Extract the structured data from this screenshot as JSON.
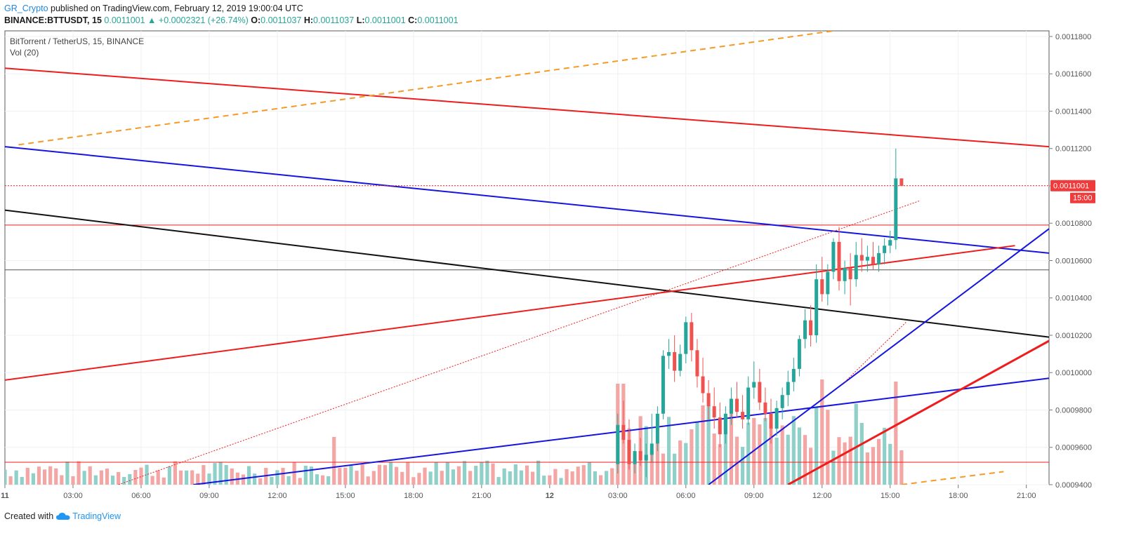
{
  "header": {
    "author": "GR_Crypto",
    "published_text": " published on TradingView.com, February 12, 2019 19:00:04 UTC"
  },
  "ohlc": {
    "symbol": "BINANCE:BTTUSDT, 15",
    "last": "0.0011001",
    "arrow": "▲",
    "change": "+0.0002321 (+26.74%)",
    "o_label": "O:",
    "o": "0.0011037",
    "h_label": "H:",
    "h": "0.0011037",
    "l_label": "L:",
    "l": "0.0011001",
    "c_label": "C:",
    "c": "0.0011001"
  },
  "legend": {
    "title": "BitTorrent / TetherUS, 15, BINANCE",
    "volume": "Vol (20)"
  },
  "footer": {
    "created_with": "Created with",
    "brand": "TradingView"
  },
  "colors": {
    "up": "#26a69a",
    "down": "#ef5350",
    "up_vol": "#8fd0c8",
    "down_vol": "#f4a6a4",
    "red_line": "#ee1c1c",
    "blue_line": "#1515e0",
    "black_line": "#111111",
    "orange_dash": "#f59a23",
    "grid": "#eef0f3"
  },
  "chart_data": {
    "type": "candlestick",
    "title": "BitTorrent / TetherUS, 15, BINANCE",
    "y_range": [
      0.00094,
      0.001183
    ],
    "y_ticks": [
      "0.0011800",
      "0.0011600",
      "0.0011400",
      "0.0011200",
      "0.0011000",
      "0.0010800",
      "0.0010600",
      "0.0010400",
      "0.0010200",
      "0.0010000",
      "0.0009800",
      "0.0009600",
      "0.0009400"
    ],
    "x_ticks": [
      "11",
      "03:00",
      "06:00",
      "09:00",
      "12:00",
      "15:00",
      "18:00",
      "21:00",
      "12",
      "03:00",
      "06:00",
      "09:00",
      "12:00",
      "15:00",
      "18:00",
      "21:00"
    ],
    "x_range_hours": [
      0,
      46
    ],
    "price_label": "0.0011001",
    "price_time": "15:00",
    "horizontal_levels": [
      {
        "name": "resistance-red",
        "price": 0.001079
      },
      {
        "name": "support-black",
        "price": 0.001055
      },
      {
        "name": "volume-ma",
        "price": 0.000952
      }
    ],
    "trendlines": [
      {
        "name": "red-upper",
        "p1": [
          0,
          0.001163
        ],
        "p2": [
          46,
          0.001121
        ]
      },
      {
        "name": "blue-upper",
        "p1": [
          0,
          0.001121
        ],
        "p2": [
          46,
          0.001064
        ]
      },
      {
        "name": "black-descending",
        "p1": [
          0,
          0.001087
        ],
        "p2": [
          46,
          0.001019
        ]
      },
      {
        "name": "red-rising",
        "p1": [
          0,
          0.000996
        ],
        "p2": [
          44.5,
          0.001068
        ]
      },
      {
        "name": "blue-rising",
        "p1": [
          8.3,
          0.00094
        ],
        "p2": [
          46,
          0.000997
        ]
      },
      {
        "name": "blue-rising-2",
        "p1": [
          31.0,
          0.00094
        ],
        "p2": [
          46,
          0.001077
        ]
      },
      {
        "name": "red-bold-rising",
        "p1": [
          34.5,
          0.00094
        ],
        "p2": [
          46,
          0.001017
        ]
      }
    ],
    "dashed_lines": [
      {
        "name": "orange-upper",
        "p1": [
          0.6,
          0.001122
        ],
        "p2": [
          36.5,
          0.001183
        ]
      },
      {
        "name": "orange-lower",
        "p1": [
          39.5,
          0.00094
        ],
        "p2": [
          44.0,
          0.000947
        ]
      }
    ],
    "dotted_lines": [
      {
        "name": "red-dotted-long",
        "p1": [
          5.0,
          0.00094
        ],
        "p2": [
          40.3,
          0.001092
        ]
      },
      {
        "name": "red-dotted-short",
        "p1": [
          37.0,
          0.000995
        ],
        "p2": [
          39.7,
          0.001027
        ]
      }
    ],
    "candles": [
      [
        27.0,
        0.000951,
        0.000978,
        0.000946,
        0.000972
      ],
      [
        27.25,
        0.000972,
        0.000985,
        0.000962,
        0.000964
      ],
      [
        27.5,
        0.000964,
        0.000975,
        0.000948,
        0.000951
      ],
      [
        27.75,
        0.000951,
        0.000962,
        0.000946,
        0.000958
      ],
      [
        28.0,
        0.000958,
        0.000965,
        0.00095,
        0.000953
      ],
      [
        28.25,
        0.000953,
        0.000962,
        0.000944,
        0.000956
      ],
      [
        28.5,
        0.000956,
        0.000978,
        0.000952,
        0.000962
      ],
      [
        28.75,
        0.000962,
        0.000982,
        0.000958,
        0.000978
      ],
      [
        29.0,
        0.000978,
        0.001012,
        0.000975,
        0.001009
      ],
      [
        29.25,
        0.001009,
        0.001018,
        0.001002,
        0.001011
      ],
      [
        29.5,
        0.001011,
        0.00102,
        0.000995,
        0.001001
      ],
      [
        29.75,
        0.001001,
        0.001015,
        0.000998,
        0.00101
      ],
      [
        30.0,
        0.00101,
        0.00103,
        0.001005,
        0.001027
      ],
      [
        30.25,
        0.001027,
        0.001032,
        0.001006,
        0.001012
      ],
      [
        30.5,
        0.001012,
        0.001018,
        0.000992,
        0.000998
      ],
      [
        30.75,
        0.000998,
        0.001008,
        0.000984,
        0.000989
      ],
      [
        31.0,
        0.000989,
        0.000996,
        0.000975,
        0.000982
      ],
      [
        31.25,
        0.000982,
        0.000992,
        0.00097,
        0.000976
      ],
      [
        31.5,
        0.000976,
        0.000984,
        0.00096,
        0.000967
      ],
      [
        31.75,
        0.000967,
        0.000982,
        0.000962,
        0.000978
      ],
      [
        32.0,
        0.000978,
        0.000992,
        0.000972,
        0.000986
      ],
      [
        32.25,
        0.000986,
        0.000995,
        0.000976,
        0.000979
      ],
      [
        32.5,
        0.000979,
        0.000988,
        0.00097,
        0.000975
      ],
      [
        32.75,
        0.000975,
        0.000998,
        0.000972,
        0.000992
      ],
      [
        33.0,
        0.000992,
        0.001006,
        0.000986,
        0.000995
      ],
      [
        33.25,
        0.000995,
        0.001002,
        0.00098,
        0.000984
      ],
      [
        33.5,
        0.000984,
        0.000992,
        0.000974,
        0.000978
      ],
      [
        33.75,
        0.000978,
        0.000986,
        0.000962,
        0.00097
      ],
      [
        34.0,
        0.00097,
        0.000985,
        0.000966,
        0.000981
      ],
      [
        34.25,
        0.000981,
        0.000992,
        0.000975,
        0.000988
      ],
      [
        34.5,
        0.000988,
        0.001001,
        0.000982,
        0.000995
      ],
      [
        34.75,
        0.000995,
        0.001008,
        0.00099,
        0.001002
      ],
      [
        35.0,
        0.001002,
        0.00102,
        0.000998,
        0.001018
      ],
      [
        35.25,
        0.001018,
        0.001034,
        0.001013,
        0.001028
      ],
      [
        35.5,
        0.001028,
        0.001036,
        0.001014,
        0.00102
      ],
      [
        35.75,
        0.00102,
        0.001058,
        0.001016,
        0.00105
      ],
      [
        36.0,
        0.00105,
        0.001062,
        0.001038,
        0.001042
      ],
      [
        36.25,
        0.001042,
        0.001058,
        0.001036,
        0.001054
      ],
      [
        36.5,
        0.001054,
        0.001072,
        0.00105,
        0.00107
      ],
      [
        36.75,
        0.00107,
        0.001078,
        0.001044,
        0.001049
      ],
      [
        37.0,
        0.001049,
        0.00106,
        0.001042,
        0.001056
      ],
      [
        37.25,
        0.001056,
        0.001064,
        0.001036,
        0.00105
      ],
      [
        37.5,
        0.00105,
        0.00107,
        0.001046,
        0.001063
      ],
      [
        37.75,
        0.001063,
        0.001072,
        0.001054,
        0.00106
      ],
      [
        38.0,
        0.00106,
        0.001068,
        0.001054,
        0.001062
      ],
      [
        38.25,
        0.001062,
        0.00107,
        0.001055,
        0.001058
      ],
      [
        38.5,
        0.001058,
        0.001068,
        0.001054,
        0.001064
      ],
      [
        38.75,
        0.001064,
        0.001072,
        0.001058,
        0.001068
      ],
      [
        39.0,
        0.001068,
        0.001076,
        0.001064,
        0.001071
      ],
      [
        39.25,
        0.001071,
        0.00112,
        0.001066,
        0.001104
      ],
      [
        39.5,
        0.001104,
        0.001104,
        0.0011,
        0.0011
      ]
    ],
    "volume": [
      [
        0,
        3
      ],
      [
        1,
        2
      ],
      [
        2,
        2
      ],
      [
        3,
        1
      ],
      [
        4,
        2
      ],
      [
        5,
        3
      ],
      [
        6,
        3
      ],
      [
        7,
        2
      ],
      [
        8,
        3
      ],
      [
        9,
        2
      ],
      [
        10,
        2
      ],
      [
        11,
        3
      ],
      [
        12,
        2
      ],
      [
        13,
        4
      ],
      [
        14,
        3
      ],
      [
        15,
        2
      ],
      [
        16,
        2
      ],
      [
        17,
        3
      ],
      [
        18,
        4
      ],
      [
        19,
        2
      ],
      [
        20,
        3
      ],
      [
        21,
        5
      ],
      [
        22,
        3
      ],
      [
        23,
        3
      ],
      [
        24,
        2
      ],
      [
        25,
        3
      ],
      [
        26,
        4
      ],
      [
        27,
        3
      ],
      [
        28,
        5
      ],
      [
        29,
        7
      ],
      [
        30,
        4
      ]
    ],
    "ylabel": "",
    "xlabel": ""
  }
}
